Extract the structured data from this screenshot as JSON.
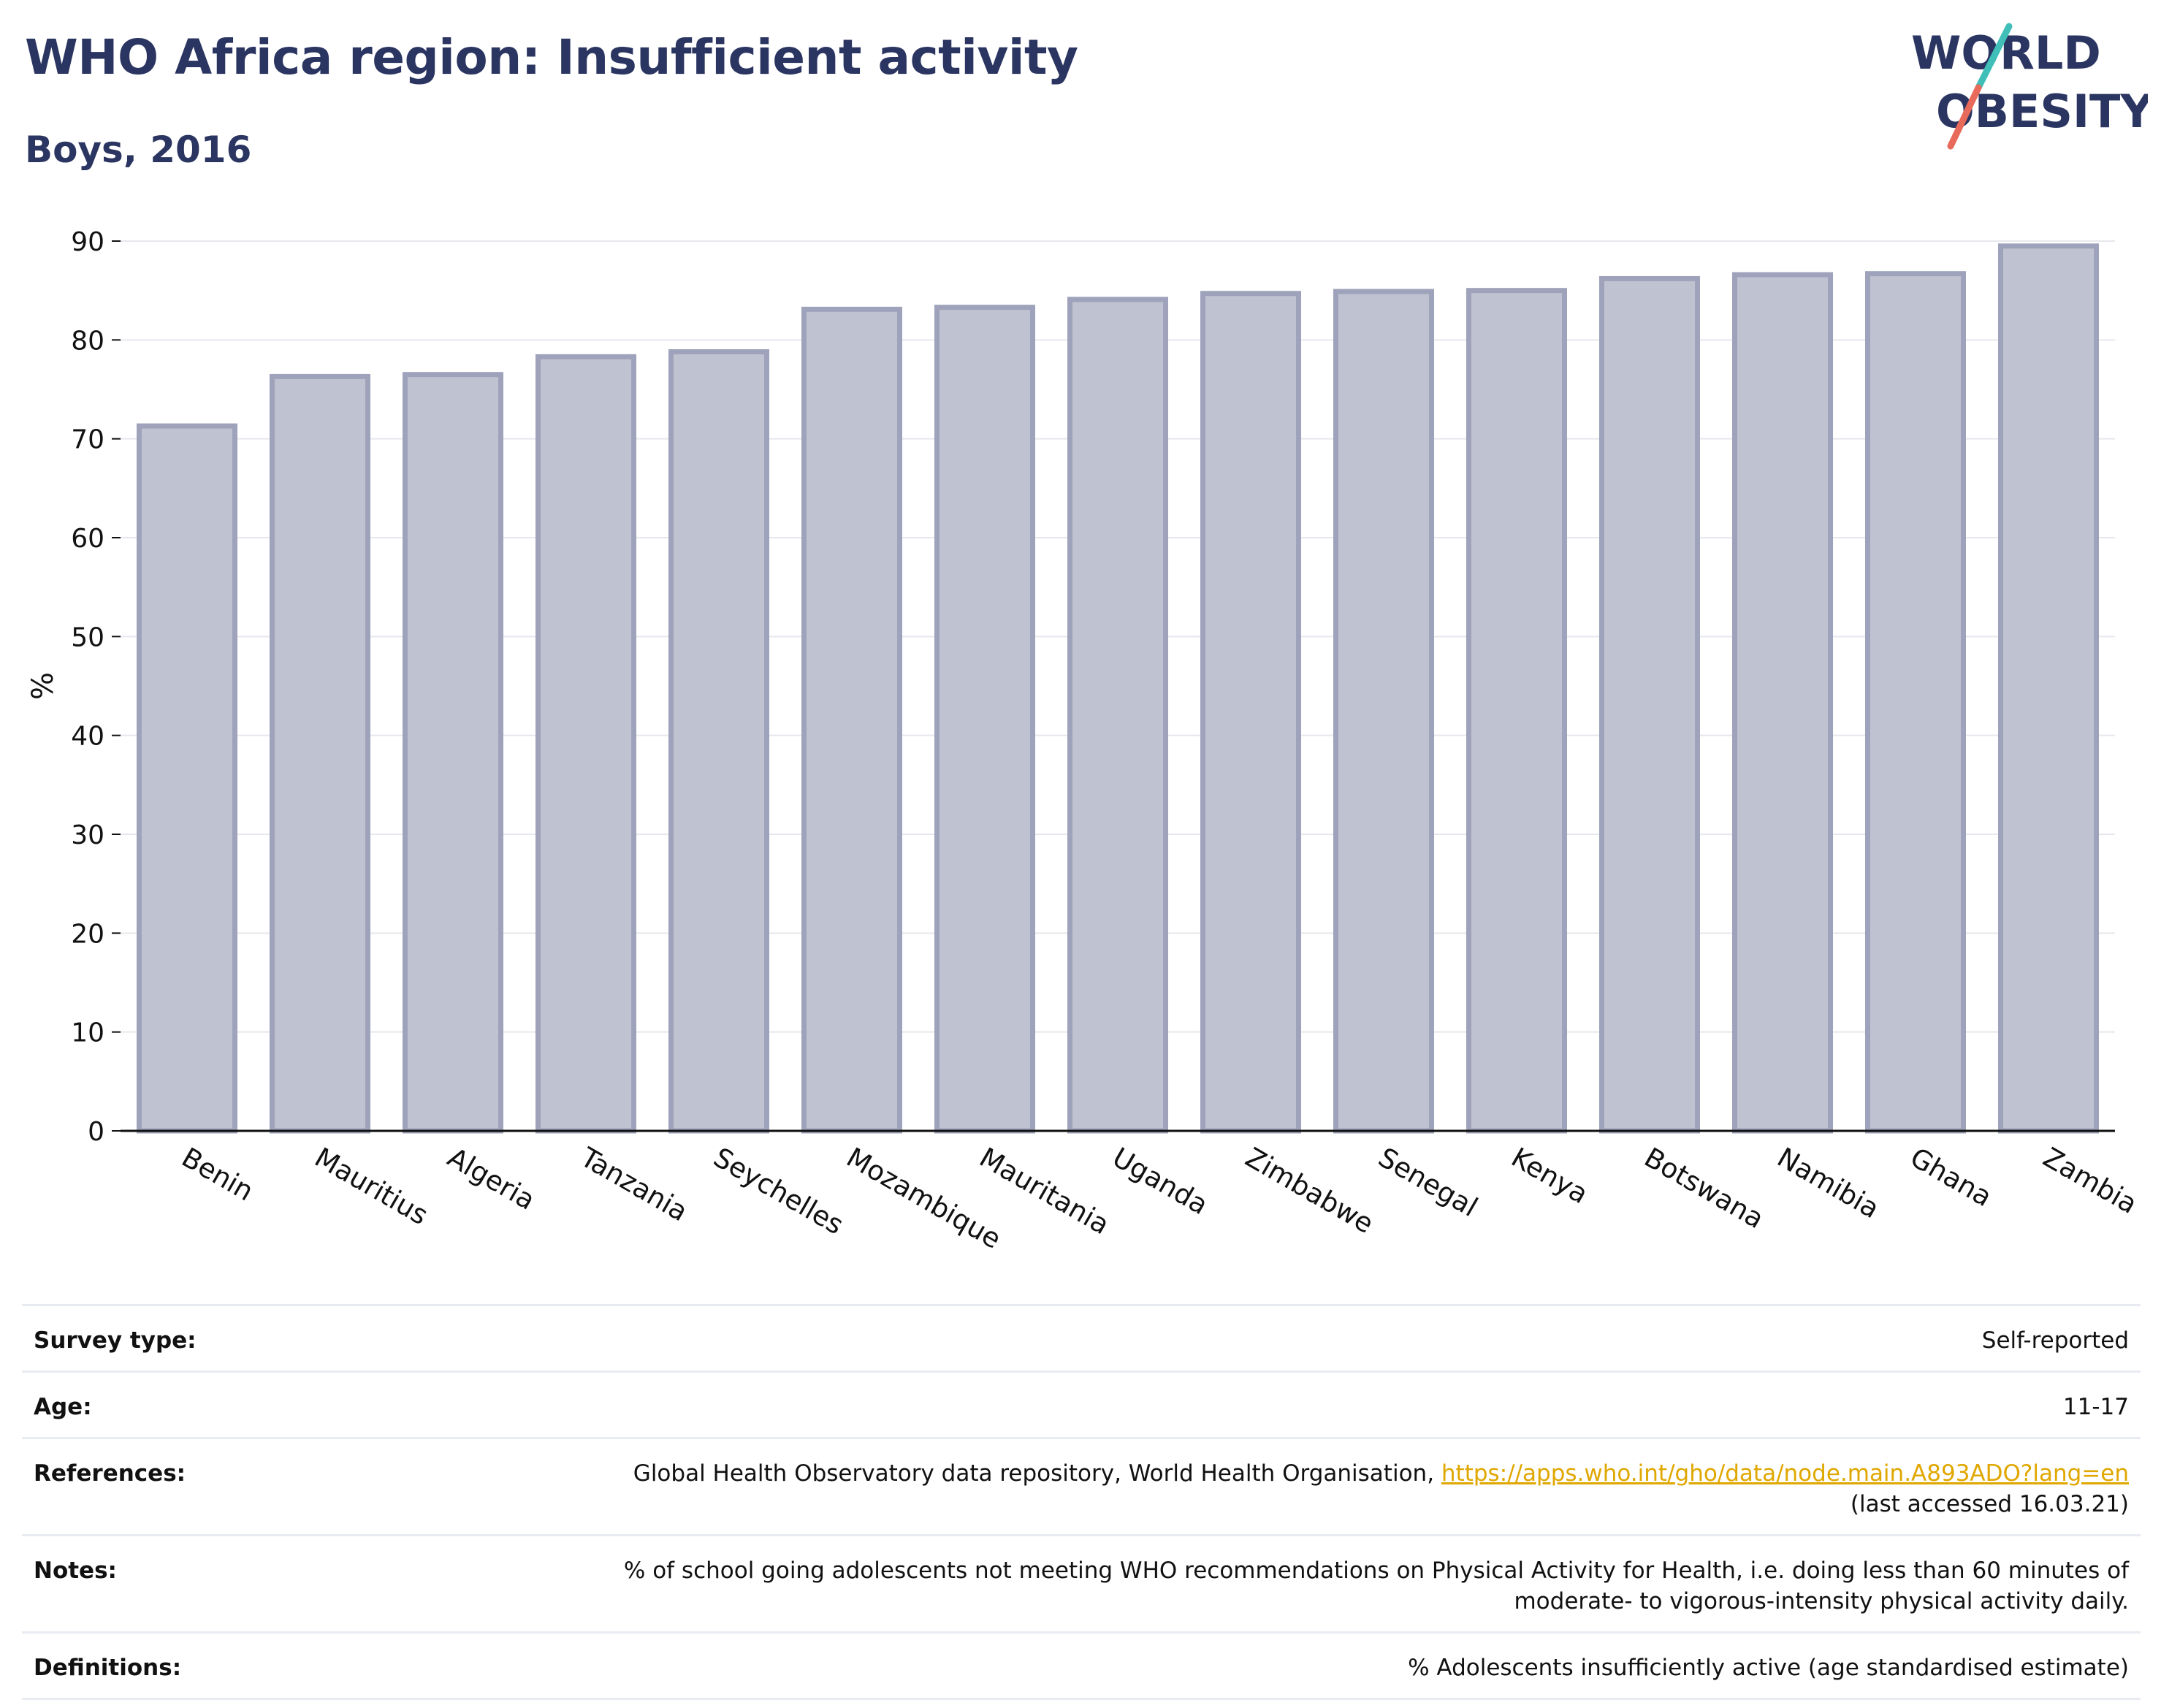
{
  "header": {
    "title": "WHO Africa region: Insufficient activity",
    "subtitle": "Boys, 2016"
  },
  "logo": {
    "line1": "WORLD",
    "line2": "OBESITY",
    "text_color": "#2b3561",
    "slash_colors": [
      "#3fbfb8",
      "#e86a5a"
    ]
  },
  "chart_data": {
    "type": "bar",
    "categories": [
      "Benin",
      "Mauritius",
      "Algeria",
      "Tanzania",
      "Seychelles",
      "Mozambique",
      "Mauritania",
      "Uganda",
      "Zimbabwe",
      "Senegal",
      "Kenya",
      "Botswana",
      "Namibia",
      "Ghana",
      "Zambia"
    ],
    "values": [
      71.3,
      76.3,
      76.5,
      78.3,
      78.8,
      83.1,
      83.3,
      84.1,
      84.7,
      84.9,
      85.0,
      86.2,
      86.6,
      86.7,
      89.5
    ],
    "ylabel": "%",
    "ylim": [
      0,
      90
    ],
    "yticks": [
      0,
      10,
      20,
      30,
      40,
      50,
      60,
      70,
      80,
      90
    ],
    "grid": true,
    "bar_fill": "#bfc2d0",
    "bar_stroke": "#9ea3bb",
    "axis_color": "#111111",
    "grid_color": "#e6e8ee"
  },
  "meta": {
    "survey_type": {
      "label": "Survey type:",
      "value": "Self-reported"
    },
    "age": {
      "label": "Age:",
      "value": "11-17"
    },
    "references": {
      "label": "References:",
      "text": "Global Health Observatory data repository, World Health Organisation, ",
      "link": "https://apps.who.int/gho/data/node.main.A893ADO?lang=en",
      "suffix": "(last accessed 16.03.21)"
    },
    "notes": {
      "label": "Notes:",
      "line1": "% of school going adolescents not meeting WHO recommendations on Physical Activity for Health, i.e. doing less than 60 minutes of",
      "line2": "moderate- to vigorous-intensity physical activity daily."
    },
    "definitions": {
      "label": "Definitions:",
      "value": "% Adolescents insufficiently active (age standardised estimate)"
    }
  }
}
